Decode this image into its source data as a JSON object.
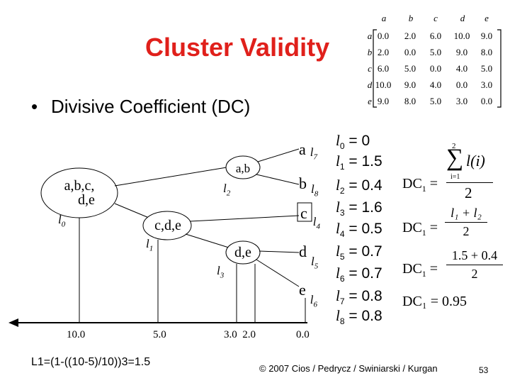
{
  "title": "Cluster Validity",
  "bullet": {
    "symbol": "•",
    "text": "Divisive Coefficient (DC)"
  },
  "matrix": {
    "cols": [
      "a",
      "b",
      "c",
      "d",
      "e"
    ],
    "rows": [
      {
        "label": "a",
        "cells": [
          "0.0",
          "2.0",
          "6.0",
          "10.0",
          "9.0"
        ]
      },
      {
        "label": "b",
        "cells": [
          "2.0",
          "0.0",
          "5.0",
          "9.0",
          "8.0"
        ]
      },
      {
        "label": "c",
        "cells": [
          "6.0",
          "5.0",
          "0.0",
          "4.0",
          "5.0"
        ]
      },
      {
        "label": "d",
        "cells": [
          "10.0",
          "9.0",
          "4.0",
          "0.0",
          "3.0"
        ]
      },
      {
        "label": "e",
        "cells": [
          "9.0",
          "8.0",
          "5.0",
          "3.0",
          "0.0"
        ]
      }
    ]
  },
  "tree": {
    "root": {
      "line1": "a,b,c,",
      "line2": "d,e",
      "level": "l",
      "level_sub": "0"
    },
    "ab": {
      "text": "a,b",
      "level": "l",
      "level_sub": "2"
    },
    "cde": {
      "text": "c,d,e",
      "level": "l",
      "level_sub": "1"
    },
    "de": {
      "text": "d,e",
      "level": "l",
      "level_sub": "3"
    },
    "leaves": [
      {
        "name": "a",
        "level": "l",
        "sub": "7"
      },
      {
        "name": "b",
        "level": "l",
        "sub": "8"
      },
      {
        "name": "c",
        "level": "l",
        "sub": "4"
      },
      {
        "name": "d",
        "level": "l",
        "sub": "5"
      },
      {
        "name": "e",
        "level": "l",
        "sub": "6"
      }
    ]
  },
  "axis_ticks": [
    "10.0",
    "5.0",
    "3.0  2.0",
    "0.0"
  ],
  "levels": [
    {
      "l": "l",
      "sub": "0",
      "value": "= 0"
    },
    {
      "l": "l",
      "sub": "1",
      "value": "= 1.5"
    },
    {
      "l": "l",
      "sub": "2",
      "value": "= 0.4"
    },
    {
      "l": "l",
      "sub": "3",
      "value": "= 1.6"
    },
    {
      "l": "l",
      "sub": "4",
      "value": "= 0.5"
    },
    {
      "l": "l",
      "sub": "5",
      "value": "= 0.7"
    },
    {
      "l": "l",
      "sub": "6",
      "value": "= 0.7"
    },
    {
      "l": "l",
      "sub": "7",
      "value": "= 0.8"
    },
    {
      "l": "l",
      "sub": "8",
      "value": "= 0.8"
    }
  ],
  "formulas": {
    "dc": "DC",
    "sub1": "1",
    "eq": "=",
    "sum_top": "2",
    "sum_bottom": "i=1",
    "sum_sign": "∑",
    "sum_term": "l(i)",
    "denom": "2",
    "f2_num": "l₁ + l₂",
    "f2_den": "2",
    "f3_num": "1.5 + 0.4",
    "f3_den": "2",
    "result": "DC₁ = 0.95"
  },
  "l1_calc": "L1=(1-((10-5)/10))3=1.5",
  "copyright": "© 2007 Cios / Pedrycz / Swiniarski / Kurgan",
  "page_number": "53",
  "colors": {
    "title": "#e0201b",
    "text": "#000000"
  }
}
